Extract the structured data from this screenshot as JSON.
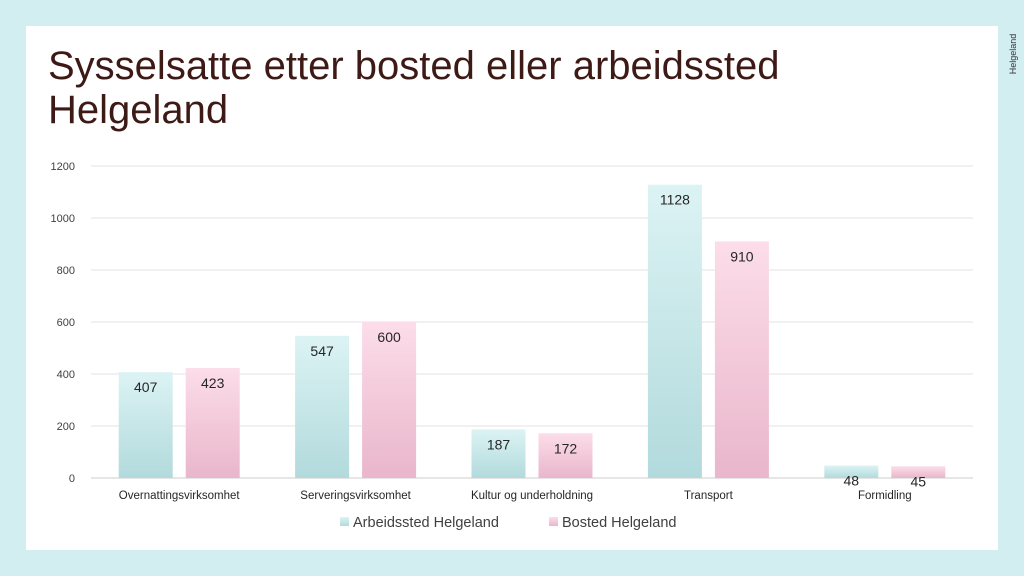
{
  "title_lines": [
    "Sysselsatte etter bosted eller arbeidssted",
    "Helgeland"
  ],
  "logo_text": "Helgeland",
  "colors": {
    "background": "#d3eef0",
    "title": "#3d1a16",
    "series1_top": "#dcf3f4",
    "series1_bottom": "#b2dadc",
    "series2_top": "#fcdde9",
    "series2_bottom": "#e9b6cb"
  },
  "chart_data": {
    "type": "bar",
    "categories": [
      "Overnattingsvirksomhet",
      "Serveringsvirksomhet",
      "Kultur og underholdning",
      "Transport",
      "Formidling"
    ],
    "series": [
      {
        "name": "Arbeidssted Helgeland",
        "values": [
          407,
          547,
          187,
          1128,
          48
        ]
      },
      {
        "name": "Bosted Helgeland",
        "values": [
          423,
          600,
          172,
          910,
          45
        ]
      }
    ],
    "ylim": [
      0,
      1200
    ],
    "yticks": [
      0,
      200,
      400,
      600,
      800,
      1000,
      1200
    ],
    "grid": true,
    "legend": "bottom",
    "data_labels": true
  }
}
